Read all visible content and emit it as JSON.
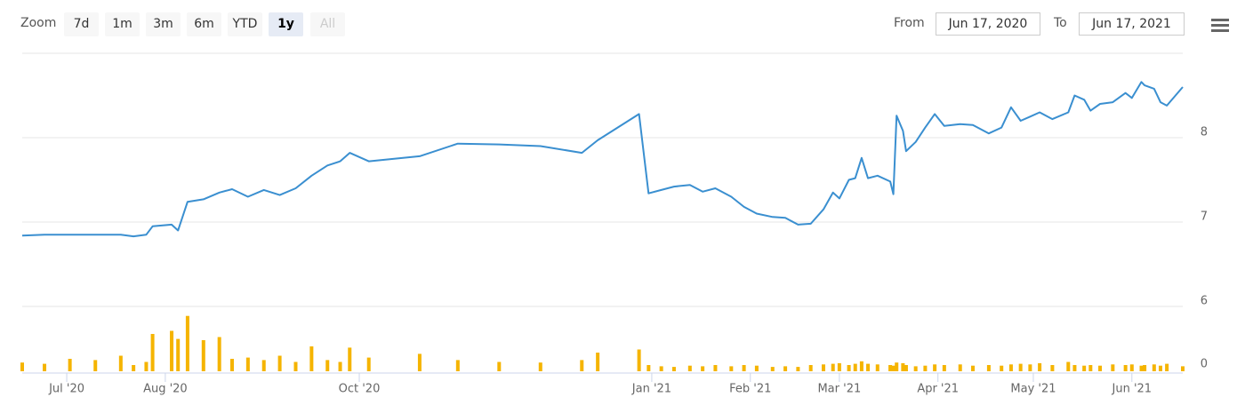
{
  "range_selector": {
    "label": "Zoom",
    "buttons": [
      "7d",
      "1m",
      "3m",
      "6m",
      "YTD",
      "1y",
      "All"
    ],
    "selected": 5,
    "disabled": [
      6
    ],
    "from_label": "From",
    "from": "Jun 17, 2020",
    "to_label": "To",
    "to": "Jun 17, 2021"
  },
  "chart_data": {
    "type": "line",
    "x": [
      "2020-06-17",
      "2020-06-24",
      "2020-07-02",
      "2020-07-10",
      "2020-07-18",
      "2020-07-22",
      "2020-07-26",
      "2020-07-28",
      "2020-08-03",
      "2020-08-05",
      "2020-08-08",
      "2020-08-13",
      "2020-08-18",
      "2020-08-22",
      "2020-08-27",
      "2020-09-01",
      "2020-09-06",
      "2020-09-11",
      "2020-09-16",
      "2020-09-21",
      "2020-09-25",
      "2020-09-28",
      "2020-10-04",
      "2020-10-20",
      "2020-11-01",
      "2020-11-14",
      "2020-11-27",
      "2020-12-10",
      "2020-12-15",
      "2020-12-28",
      "2020-12-31",
      "2021-01-04",
      "2021-01-08",
      "2021-01-13",
      "2021-01-17",
      "2021-01-21",
      "2021-01-26",
      "2021-01-30",
      "2021-02-03",
      "2021-02-08",
      "2021-02-12",
      "2021-02-16",
      "2021-02-20",
      "2021-02-24",
      "2021-02-27",
      "2021-03-01",
      "2021-03-04",
      "2021-03-06",
      "2021-03-08",
      "2021-03-10",
      "2021-03-13",
      "2021-03-17",
      "2021-03-18",
      "2021-03-19",
      "2021-03-21",
      "2021-03-22",
      "2021-03-25",
      "2021-03-28",
      "2021-03-31",
      "2021-04-03",
      "2021-04-08",
      "2021-04-12",
      "2021-04-17",
      "2021-04-21",
      "2021-04-24",
      "2021-04-27",
      "2021-04-30",
      "2021-05-03",
      "2021-05-07",
      "2021-05-12",
      "2021-05-14",
      "2021-05-17",
      "2021-05-19",
      "2021-05-22",
      "2021-05-26",
      "2021-05-30",
      "2021-06-01",
      "2021-06-04",
      "2021-06-05",
      "2021-06-08",
      "2021-06-10",
      "2021-06-12",
      "2021-06-17"
    ],
    "series": [
      {
        "color": "#3a8fd0",
        "values": [
          6.84,
          6.85,
          6.85,
          6.85,
          6.85,
          6.83,
          6.85,
          6.95,
          6.97,
          6.9,
          7.24,
          7.27,
          7.35,
          7.39,
          7.3,
          7.38,
          7.32,
          7.4,
          7.55,
          7.67,
          7.72,
          7.82,
          7.72,
          7.78,
          7.93,
          7.92,
          7.9,
          7.82,
          7.97,
          8.28,
          7.34,
          7.38,
          7.42,
          7.44,
          7.36,
          7.4,
          7.3,
          7.18,
          7.1,
          7.06,
          7.05,
          6.97,
          6.98,
          7.15,
          7.35,
          7.28,
          7.5,
          7.52,
          7.76,
          7.52,
          7.55,
          7.48,
          7.33,
          8.26,
          8.08,
          7.84,
          7.95,
          8.12,
          8.28,
          8.14,
          8.16,
          8.15,
          8.05,
          8.12,
          8.36,
          8.2,
          8.25,
          8.3,
          8.22,
          8.3,
          8.5,
          8.45,
          8.32,
          8.4,
          8.42,
          8.53,
          8.47,
          8.66,
          8.62,
          8.58,
          8.42,
          8.38,
          8.6
        ]
      },
      {
        "type": "bar",
        "axis": "y2",
        "color": "#f5b400",
        "values": [
          14,
          12,
          20,
          18,
          25,
          10,
          15,
          60,
          65,
          52,
          89,
          50,
          55,
          20,
          22,
          18,
          25,
          15,
          40,
          18,
          15,
          38,
          22,
          28,
          18,
          15,
          14,
          18,
          30,
          35,
          10,
          8,
          7,
          9,
          8,
          10,
          8,
          10,
          9,
          7,
          8,
          7,
          10,
          11,
          12,
          13,
          10,
          12,
          16,
          12,
          11,
          10,
          9,
          14,
          13,
          10,
          8,
          9,
          11,
          10,
          11,
          9,
          10,
          9,
          11,
          12,
          11,
          13,
          10,
          15,
          10,
          9,
          10,
          9,
          11,
          10,
          11,
          9,
          10,
          11,
          9,
          12,
          8
        ]
      }
    ],
    "xlim": [
      "2020-06-17",
      "2021-06-17"
    ],
    "xticks": [
      {
        "value": "2020-07-01",
        "label": "Jul '20"
      },
      {
        "value": "2020-08-01",
        "label": "Aug '20"
      },
      {
        "value": "2020-10-01",
        "label": "Oct '20"
      },
      {
        "value": "2021-01-01",
        "label": "Jan '21"
      },
      {
        "value": "2021-02-01",
        "label": "Feb '21"
      },
      {
        "value": "2021-03-01",
        "label": "Mar '21"
      },
      {
        "value": "2021-04-01",
        "label": "Apr '21"
      },
      {
        "value": "2021-05-01",
        "label": "May '21"
      },
      {
        "value": "2021-06-01",
        "label": "Jun '21"
      }
    ],
    "ylim": [
      6,
      9
    ],
    "yticks": [
      6,
      7,
      8
    ],
    "y2lim": [
      0,
      100
    ],
    "y2ticks": [
      0
    ],
    "grid": true
  }
}
